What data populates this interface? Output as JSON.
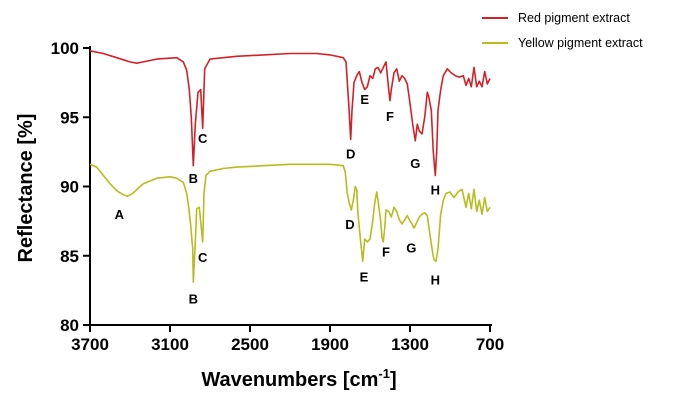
{
  "chart_data": {
    "type": "line",
    "xlabel": "Wavenumbers [cm",
    "xlabel_sup": "-1",
    "xlabel_close": "]",
    "ylabel": "Reflectance [%]",
    "xlim": [
      3700,
      700
    ],
    "ylim": [
      80,
      100
    ],
    "x_reversed": true,
    "xticks": [
      "3700",
      "3100",
      "2500",
      "1900",
      "1300",
      "700"
    ],
    "yticks": [
      "100",
      "95",
      "90",
      "85",
      "80"
    ],
    "legend_position": "top-right",
    "series": [
      {
        "name": "Red pigment extract",
        "color": "#d42127",
        "points": [
          [
            3700,
            99.8
          ],
          [
            3600,
            99.6
          ],
          [
            3500,
            99.3
          ],
          [
            3400,
            99.0
          ],
          [
            3350,
            98.9
          ],
          [
            3300,
            99.0
          ],
          [
            3200,
            99.2
          ],
          [
            3050,
            99.3
          ],
          [
            3000,
            99.0
          ],
          [
            2975,
            98.4
          ],
          [
            2955,
            97.0
          ],
          [
            2940,
            95.0
          ],
          [
            2925,
            91.5
          ],
          [
            2910,
            94.5
          ],
          [
            2890,
            96.8
          ],
          [
            2870,
            97.0
          ],
          [
            2855,
            94.2
          ],
          [
            2840,
            98.5
          ],
          [
            2800,
            99.2
          ],
          [
            2600,
            99.4
          ],
          [
            2400,
            99.5
          ],
          [
            2200,
            99.6
          ],
          [
            2000,
            99.6
          ],
          [
            1900,
            99.5
          ],
          [
            1800,
            99.3
          ],
          [
            1780,
            99.0
          ],
          [
            1760,
            96.0
          ],
          [
            1745,
            93.4
          ],
          [
            1735,
            95.5
          ],
          [
            1720,
            97.5
          ],
          [
            1700,
            98.0
          ],
          [
            1680,
            98.3
          ],
          [
            1660,
            97.5
          ],
          [
            1640,
            97.0
          ],
          [
            1620,
            97.2
          ],
          [
            1600,
            98.0
          ],
          [
            1580,
            97.8
          ],
          [
            1560,
            98.5
          ],
          [
            1540,
            98.6
          ],
          [
            1520,
            98.2
          ],
          [
            1500,
            98.6
          ],
          [
            1480,
            99.0
          ],
          [
            1460,
            97.0
          ],
          [
            1450,
            96.2
          ],
          [
            1440,
            97.0
          ],
          [
            1420,
            98.2
          ],
          [
            1400,
            98.5
          ],
          [
            1380,
            97.6
          ],
          [
            1360,
            98.0
          ],
          [
            1340,
            97.8
          ],
          [
            1320,
            97.4
          ],
          [
            1300,
            96.0
          ],
          [
            1280,
            94.5
          ],
          [
            1260,
            93.3
          ],
          [
            1245,
            94.5
          ],
          [
            1230,
            94.0
          ],
          [
            1210,
            93.8
          ],
          [
            1190,
            95.0
          ],
          [
            1170,
            96.8
          ],
          [
            1160,
            96.5
          ],
          [
            1140,
            95.5
          ],
          [
            1125,
            92.5
          ],
          [
            1110,
            90.8
          ],
          [
            1100,
            92.5
          ],
          [
            1090,
            95.5
          ],
          [
            1070,
            97.0
          ],
          [
            1050,
            98.0
          ],
          [
            1020,
            98.5
          ],
          [
            990,
            98.2
          ],
          [
            960,
            98.0
          ],
          [
            930,
            97.9
          ],
          [
            900,
            98.0
          ],
          [
            880,
            97.3
          ],
          [
            860,
            97.8
          ],
          [
            840,
            97.2
          ],
          [
            820,
            98.6
          ],
          [
            800,
            97.2
          ],
          [
            780,
            97.6
          ],
          [
            760,
            97.2
          ],
          [
            740,
            98.3
          ],
          [
            720,
            97.4
          ],
          [
            700,
            97.8
          ]
        ]
      },
      {
        "name": "Yellow pigment extract",
        "color": "#b5bd21",
        "points": [
          [
            3700,
            91.6
          ],
          [
            3650,
            91.4
          ],
          [
            3600,
            90.8
          ],
          [
            3550,
            90.2
          ],
          [
            3500,
            89.7
          ],
          [
            3450,
            89.4
          ],
          [
            3420,
            89.3
          ],
          [
            3380,
            89.5
          ],
          [
            3300,
            90.2
          ],
          [
            3200,
            90.6
          ],
          [
            3100,
            90.7
          ],
          [
            3050,
            90.6
          ],
          [
            3000,
            90.3
          ],
          [
            2975,
            89.5
          ],
          [
            2960,
            88.5
          ],
          [
            2945,
            87.2
          ],
          [
            2930,
            85.5
          ],
          [
            2925,
            83.1
          ],
          [
            2910,
            86.0
          ],
          [
            2900,
            88.4
          ],
          [
            2880,
            88.5
          ],
          [
            2865,
            87.0
          ],
          [
            2855,
            86.0
          ],
          [
            2845,
            89.5
          ],
          [
            2830,
            90.8
          ],
          [
            2800,
            91.1
          ],
          [
            2700,
            91.3
          ],
          [
            2600,
            91.4
          ],
          [
            2400,
            91.5
          ],
          [
            2200,
            91.6
          ],
          [
            2000,
            91.6
          ],
          [
            1900,
            91.6
          ],
          [
            1800,
            91.5
          ],
          [
            1785,
            91.0
          ],
          [
            1770,
            89.5
          ],
          [
            1755,
            88.8
          ],
          [
            1740,
            88.3
          ],
          [
            1725,
            89.0
          ],
          [
            1710,
            90.0
          ],
          [
            1700,
            89.8
          ],
          [
            1690,
            88.0
          ],
          [
            1670,
            86.0
          ],
          [
            1655,
            84.6
          ],
          [
            1640,
            86.2
          ],
          [
            1620,
            86.0
          ],
          [
            1600,
            86.2
          ],
          [
            1580,
            87.5
          ],
          [
            1565,
            88.8
          ],
          [
            1550,
            89.6
          ],
          [
            1540,
            89.0
          ],
          [
            1520,
            87.5
          ],
          [
            1510,
            86.3
          ],
          [
            1500,
            86.0
          ],
          [
            1490,
            87.0
          ],
          [
            1480,
            88.3
          ],
          [
            1460,
            88.2
          ],
          [
            1440,
            87.8
          ],
          [
            1420,
            88.5
          ],
          [
            1400,
            88.2
          ],
          [
            1380,
            87.6
          ],
          [
            1360,
            87.3
          ],
          [
            1340,
            87.6
          ],
          [
            1320,
            87.9
          ],
          [
            1300,
            87.5
          ],
          [
            1285,
            87.3
          ],
          [
            1270,
            87.0
          ],
          [
            1250,
            87.4
          ],
          [
            1230,
            87.8
          ],
          [
            1210,
            88.0
          ],
          [
            1190,
            88.1
          ],
          [
            1170,
            87.9
          ],
          [
            1150,
            86.5
          ],
          [
            1130,
            85.2
          ],
          [
            1120,
            84.7
          ],
          [
            1105,
            84.6
          ],
          [
            1090,
            85.5
          ],
          [
            1070,
            88.0
          ],
          [
            1050,
            89.0
          ],
          [
            1030,
            89.5
          ],
          [
            1000,
            89.6
          ],
          [
            970,
            89.2
          ],
          [
            940,
            89.6
          ],
          [
            910,
            89.8
          ],
          [
            880,
            88.5
          ],
          [
            860,
            89.5
          ],
          [
            840,
            88.4
          ],
          [
            820,
            89.8
          ],
          [
            800,
            88.2
          ],
          [
            780,
            89.0
          ],
          [
            760,
            88.0
          ],
          [
            740,
            89.2
          ],
          [
            720,
            88.2
          ],
          [
            700,
            88.5
          ]
        ]
      }
    ],
    "annotations": [
      {
        "text": "B",
        "x": 2925,
        "y": 90.6
      },
      {
        "text": "C",
        "x": 2855,
        "y": 93.5
      },
      {
        "text": "D",
        "x": 1745,
        "y": 92.4
      },
      {
        "text": "E",
        "x": 1640,
        "y": 96.3
      },
      {
        "text": "F",
        "x": 1450,
        "y": 95.1
      },
      {
        "text": "G",
        "x": 1260,
        "y": 91.7
      },
      {
        "text": "H",
        "x": 1110,
        "y": 89.8
      },
      {
        "text": "A",
        "x": 3480,
        "y": 88.0
      },
      {
        "text": "B",
        "x": 2925,
        "y": 81.9
      },
      {
        "text": "C",
        "x": 2855,
        "y": 84.9
      },
      {
        "text": "D",
        "x": 1750,
        "y": 87.3
      },
      {
        "text": "E",
        "x": 1645,
        "y": 83.5
      },
      {
        "text": "F",
        "x": 1480,
        "y": 85.3
      },
      {
        "text": "G",
        "x": 1290,
        "y": 85.6
      },
      {
        "text": "H",
        "x": 1110,
        "y": 83.3
      }
    ]
  }
}
